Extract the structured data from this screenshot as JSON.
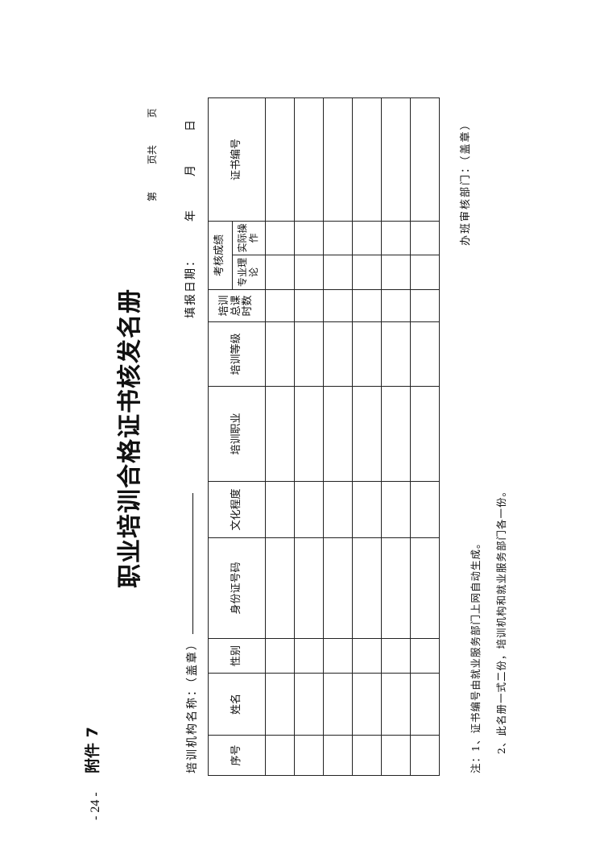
{
  "page_number": "- 24 -",
  "annex": "附件 7",
  "title": "职业培训合格证书核发名册",
  "org_label": "培训机构名称：（盖章）",
  "page_of": "第 页共 页",
  "fill_date": {
    "label": "填报日期：",
    "year": "年",
    "month": "月",
    "day": "日"
  },
  "table": {
    "headers": [
      "序号",
      "姓名",
      "性别",
      "身份证号码",
      "文化程度",
      "培训职业",
      "培训等级",
      "培训总课时数",
      "考核成绩",
      "证书编号"
    ],
    "hours_lines": [
      "培训",
      "总课",
      "时数"
    ],
    "sub_headers": [
      "专业理论",
      "实际操作"
    ],
    "rows": [
      [
        "",
        "",
        "",
        "",
        "",
        "",
        "",
        "",
        "",
        "",
        ""
      ],
      [
        "",
        "",
        "",
        "",
        "",
        "",
        "",
        "",
        "",
        "",
        ""
      ],
      [
        "",
        "",
        "",
        "",
        "",
        "",
        "",
        "",
        "",
        "",
        ""
      ],
      [
        "",
        "",
        "",
        "",
        "",
        "",
        "",
        "",
        "",
        "",
        ""
      ],
      [
        "",
        "",
        "",
        "",
        "",
        "",
        "",
        "",
        "",
        "",
        ""
      ],
      [
        "",
        "",
        "",
        "",
        "",
        "",
        "",
        "",
        "",
        "",
        ""
      ]
    ]
  },
  "notes": [
    "注：1、证书编号由就业服务部门上网自动生成。",
    "2、此名册一式二份，培训机构和就业服务部门各一份。"
  ],
  "audit_label": "办班审核部门：（盖章）"
}
